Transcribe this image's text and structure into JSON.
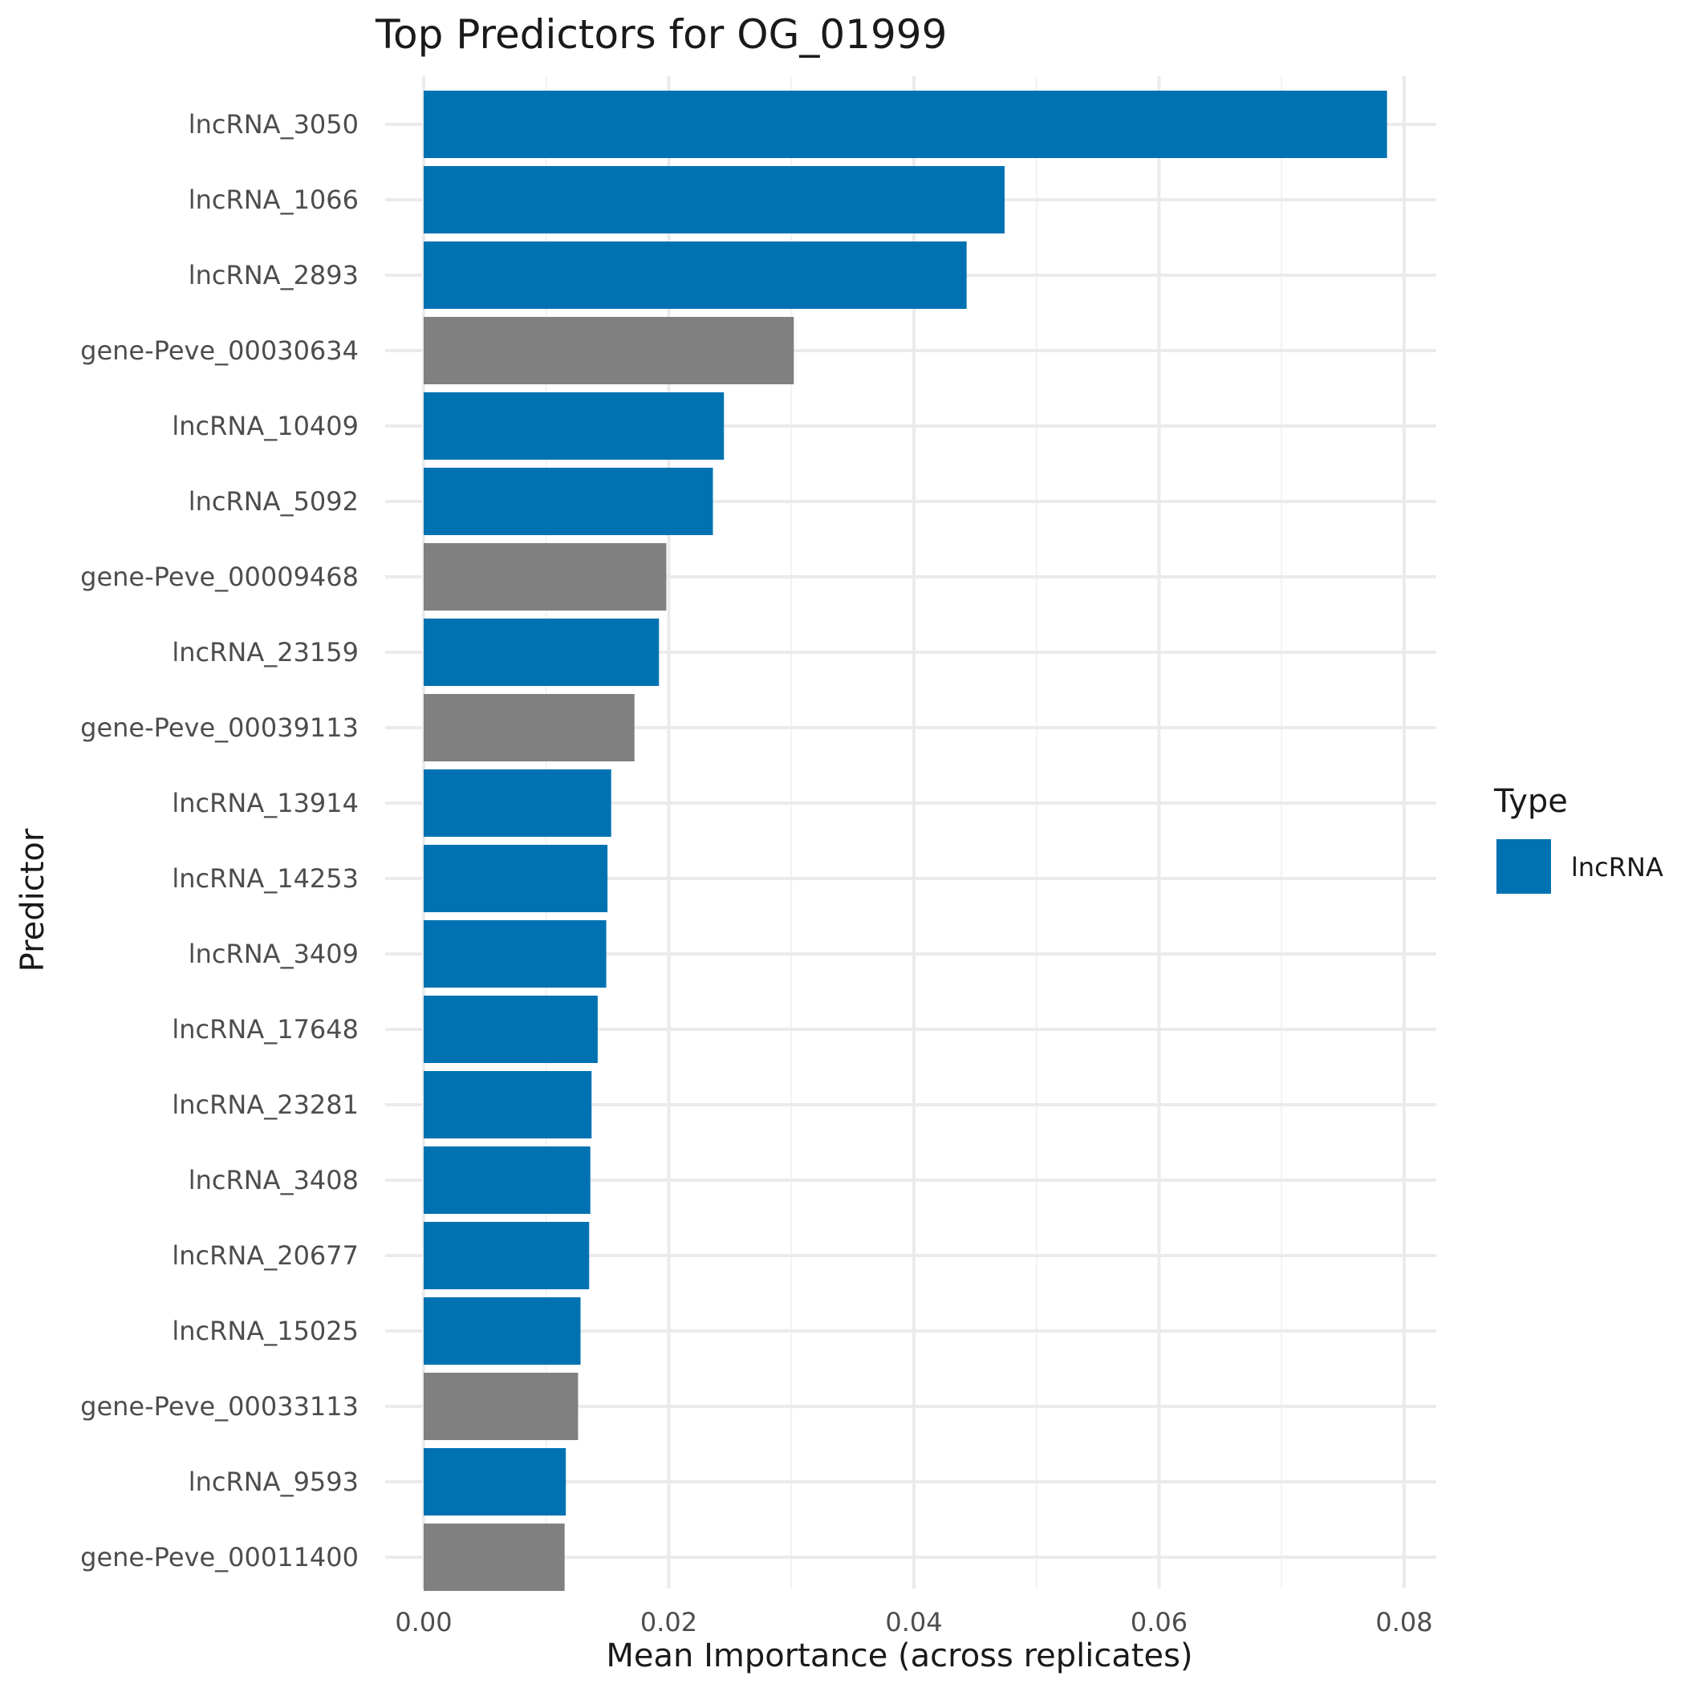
{
  "chart_data": {
    "type": "bar",
    "orientation": "horizontal",
    "title": "Top Predictors for OG_01999",
    "xlabel": "Mean Importance (across replicates)",
    "ylabel": "Predictor",
    "xlim": [
      0,
      0.08
    ],
    "x_ticks": [
      0,
      0.02,
      0.04,
      0.06,
      0.08
    ],
    "x_tick_labels": [
      "0.00",
      "0.02",
      "0.04",
      "0.06",
      "0.08"
    ],
    "grid": true,
    "legend": {
      "title": "Type",
      "placement": "right",
      "entries": [
        {
          "label": "lncRNA",
          "color": "#0072B2"
        }
      ]
    },
    "colors": {
      "lncRNA": "#0072B2",
      "gene": "#808080"
    },
    "categories": [
      "lncRNA_3050",
      "lncRNA_1066",
      "lncRNA_2893",
      "gene-Peve_00030634",
      "lncRNA_10409",
      "lncRNA_5092",
      "gene-Peve_00009468",
      "lncRNA_23159",
      "gene-Peve_00039113",
      "lncRNA_13914",
      "lncRNA_14253",
      "lncRNA_3409",
      "lncRNA_17648",
      "lncRNA_23281",
      "lncRNA_3408",
      "lncRNA_20677",
      "lncRNA_15025",
      "gene-Peve_00033113",
      "lncRNA_9593",
      "gene-Peve_00011400"
    ],
    "types": [
      "lncRNA",
      "lncRNA",
      "lncRNA",
      "gene",
      "lncRNA",
      "lncRNA",
      "gene",
      "lncRNA",
      "gene",
      "lncRNA",
      "lncRNA",
      "lncRNA",
      "lncRNA",
      "lncRNA",
      "lncRNA",
      "lncRNA",
      "lncRNA",
      "gene",
      "lncRNA",
      "gene"
    ],
    "values": [
      0.0786,
      0.0474,
      0.0443,
      0.0302,
      0.0245,
      0.0236,
      0.0198,
      0.0192,
      0.0172,
      0.0153,
      0.015,
      0.0149,
      0.0142,
      0.0137,
      0.0136,
      0.0135,
      0.0128,
      0.0126,
      0.0116,
      0.0115
    ]
  }
}
